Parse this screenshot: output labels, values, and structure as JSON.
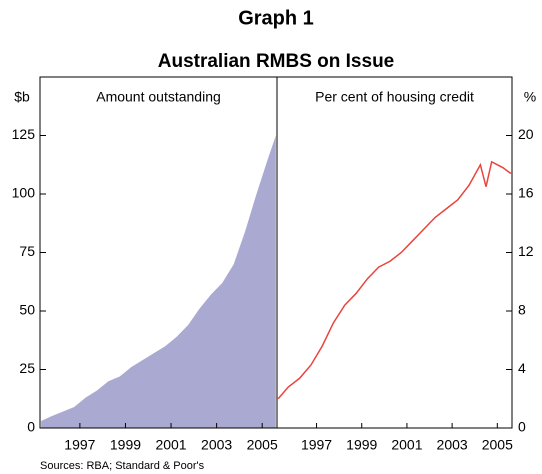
{
  "title": "Graph 1",
  "subtitle": "Australian RMBS on Issue",
  "source": "Sources: RBA; Standard & Poor's",
  "chart_data": [
    {
      "type": "area",
      "panel_title": "Amount outstanding",
      "y_label": "$b",
      "color": "#a9a9d2",
      "x": [
        1995.3,
        1995.75,
        1996.25,
        1996.75,
        1997.25,
        1997.75,
        1998.25,
        1998.75,
        1999.25,
        1999.75,
        2000.25,
        2000.75,
        2001.25,
        2001.75,
        2002.25,
        2002.75,
        2003.25,
        2003.75,
        2004.25,
        2004.75,
        2005.25,
        2005.6
      ],
      "values": [
        3,
        5,
        7,
        9,
        13,
        16,
        20,
        22,
        26,
        29,
        32,
        35,
        39,
        44,
        51,
        57,
        62,
        70,
        84,
        100,
        115,
        125
      ],
      "xlim": [
        1995.25,
        2005.65
      ],
      "xticks": [
        1997,
        1999,
        2001,
        2003,
        2005
      ],
      "ylim": [
        0,
        150
      ],
      "yticks": [
        0,
        25,
        50,
        75,
        100,
        125
      ]
    },
    {
      "type": "line",
      "panel_title": "Per cent of housing credit",
      "y_label": "%",
      "color": "#e8453c",
      "x": [
        1995.3,
        1995.75,
        1996.25,
        1996.75,
        1997.25,
        1997.75,
        1998.25,
        1998.75,
        1999.25,
        1999.75,
        2000.25,
        2000.75,
        2001.25,
        2001.75,
        2002.25,
        2002.75,
        2003.25,
        2003.75,
        2004.25,
        2004.5,
        2004.75,
        2005.25,
        2005.6
      ],
      "values": [
        2,
        2.8,
        3.4,
        4.3,
        5.6,
        7.2,
        8.4,
        9.2,
        10.2,
        11,
        11.4,
        12,
        12.8,
        13.6,
        14.4,
        15,
        15.6,
        16.6,
        18,
        16.5,
        18.2,
        17.8,
        17.4
      ],
      "xlim": [
        1995.25,
        2005.65
      ],
      "xticks": [
        1997,
        1999,
        2001,
        2003,
        2005
      ],
      "ylim": [
        0,
        24
      ],
      "yticks": [
        0,
        4,
        8,
        12,
        16,
        20
      ]
    }
  ]
}
